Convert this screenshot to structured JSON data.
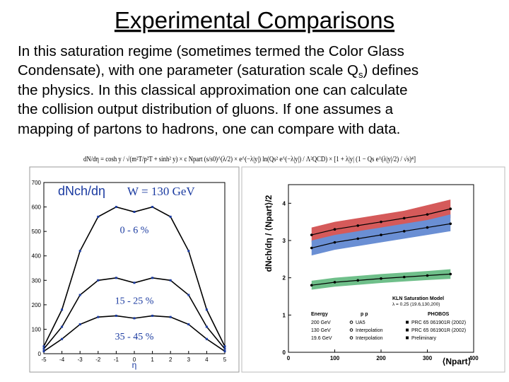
{
  "title": "Experimental Comparisons",
  "body": {
    "lines": [
      [
        "In this saturation regime (sometimes termed the Color Glass"
      ],
      [
        "Condensate), with one parameter (saturation scale Q",
        "s",
        ") defines"
      ],
      [
        "the physics.  In this classical approximation one can calculate"
      ],
      [
        "the collision output distribution of gluons.  If one assumes a"
      ],
      [
        "mapping of partons to hadrons, one can compare with data."
      ]
    ]
  },
  "formula": "dN/dη = cosh y / √(m²T/p²T + sinh² y) × c Npart (s/s0)^(λ/2) × e^(−λ|y|) ln(Qs² e^(−λ|y|) / Λ²QCD) × [1 + λ|y| (1 − Qs e^(λ|y|/2) / √s)⁴]",
  "figures": [
    {
      "type": "line",
      "title": "dNch/dη",
      "subtitle": "W = 130 GeV",
      "x_label": "η",
      "x": [
        -5,
        -4,
        -3,
        -2,
        -1,
        0,
        1,
        2,
        3,
        4,
        5
      ],
      "series": [
        {
          "name": "0 - 6 %",
          "color": "#000000",
          "values": [
            30,
            180,
            420,
            560,
            600,
            580,
            600,
            560,
            420,
            180,
            30
          ]
        },
        {
          "name": "15 - 25 %",
          "color": "#000000",
          "values": [
            20,
            110,
            240,
            300,
            310,
            290,
            310,
            300,
            240,
            110,
            20
          ]
        },
        {
          "name": "35 - 45 %",
          "color": "#000000",
          "values": [
            10,
            60,
            120,
            150,
            155,
            145,
            155,
            150,
            120,
            60,
            10
          ]
        }
      ],
      "xlim": [
        -5,
        5
      ],
      "xticks": [
        -5,
        -4,
        -3,
        -2,
        -1,
        0,
        1,
        2,
        3,
        4,
        5
      ],
      "ylim": [
        0,
        700
      ],
      "yticks": [
        0,
        100,
        200,
        300,
        400,
        500,
        600,
        700
      ]
    },
    {
      "type": "band",
      "x_label": "⟨Npart⟩",
      "y_label": "dNch/dη / ⟨Npart⟩/2",
      "x": [
        50,
        100,
        150,
        200,
        250,
        300,
        350
      ],
      "series": [
        {
          "name": "200 GeV",
          "color": "#d55a5a",
          "values": [
            3.15,
            3.3,
            3.4,
            3.5,
            3.6,
            3.7,
            3.85
          ],
          "lower": [
            2.95,
            3.1,
            3.2,
            3.3,
            3.4,
            3.5,
            3.6
          ],
          "upper": [
            3.35,
            3.5,
            3.6,
            3.7,
            3.8,
            3.95,
            4.1
          ]
        },
        {
          "name": "130 GeV",
          "color": "#6a8fd4",
          "values": [
            2.8,
            2.95,
            3.05,
            3.15,
            3.25,
            3.35,
            3.45
          ],
          "lower": [
            2.6,
            2.75,
            2.85,
            2.95,
            3.05,
            3.15,
            3.25
          ],
          "upper": [
            3.0,
            3.15,
            3.25,
            3.35,
            3.45,
            3.55,
            3.7
          ]
        },
        {
          "name": "19.6 GeV",
          "color": "#6fbf8a",
          "values": [
            1.8,
            1.88,
            1.93,
            1.98,
            2.02,
            2.06,
            2.1
          ],
          "lower": [
            1.68,
            1.76,
            1.81,
            1.86,
            1.9,
            1.94,
            1.97
          ],
          "upper": [
            1.92,
            2.0,
            2.05,
            2.1,
            2.14,
            2.18,
            2.23
          ]
        }
      ],
      "model": [
        "KLN Saturation Model",
        "λ = 0.25 (19.6,130,200)"
      ],
      "legend": {
        "header": [
          "Energy",
          "p p",
          "PHOBOS"
        ],
        "pp": [
          "UA5",
          "Interpolation",
          "Interpolation"
        ],
        "phobos": [
          "PRC 65 061901R (2002)",
          "PRC 65 061901R (2002)",
          "Preliminary"
        ]
      },
      "xlim": [
        0,
        400
      ],
      "xticks": [
        0,
        100,
        200,
        300,
        400
      ],
      "ylim": [
        0,
        4.5
      ],
      "yticks": [
        0,
        1,
        2,
        3,
        4
      ]
    }
  ]
}
